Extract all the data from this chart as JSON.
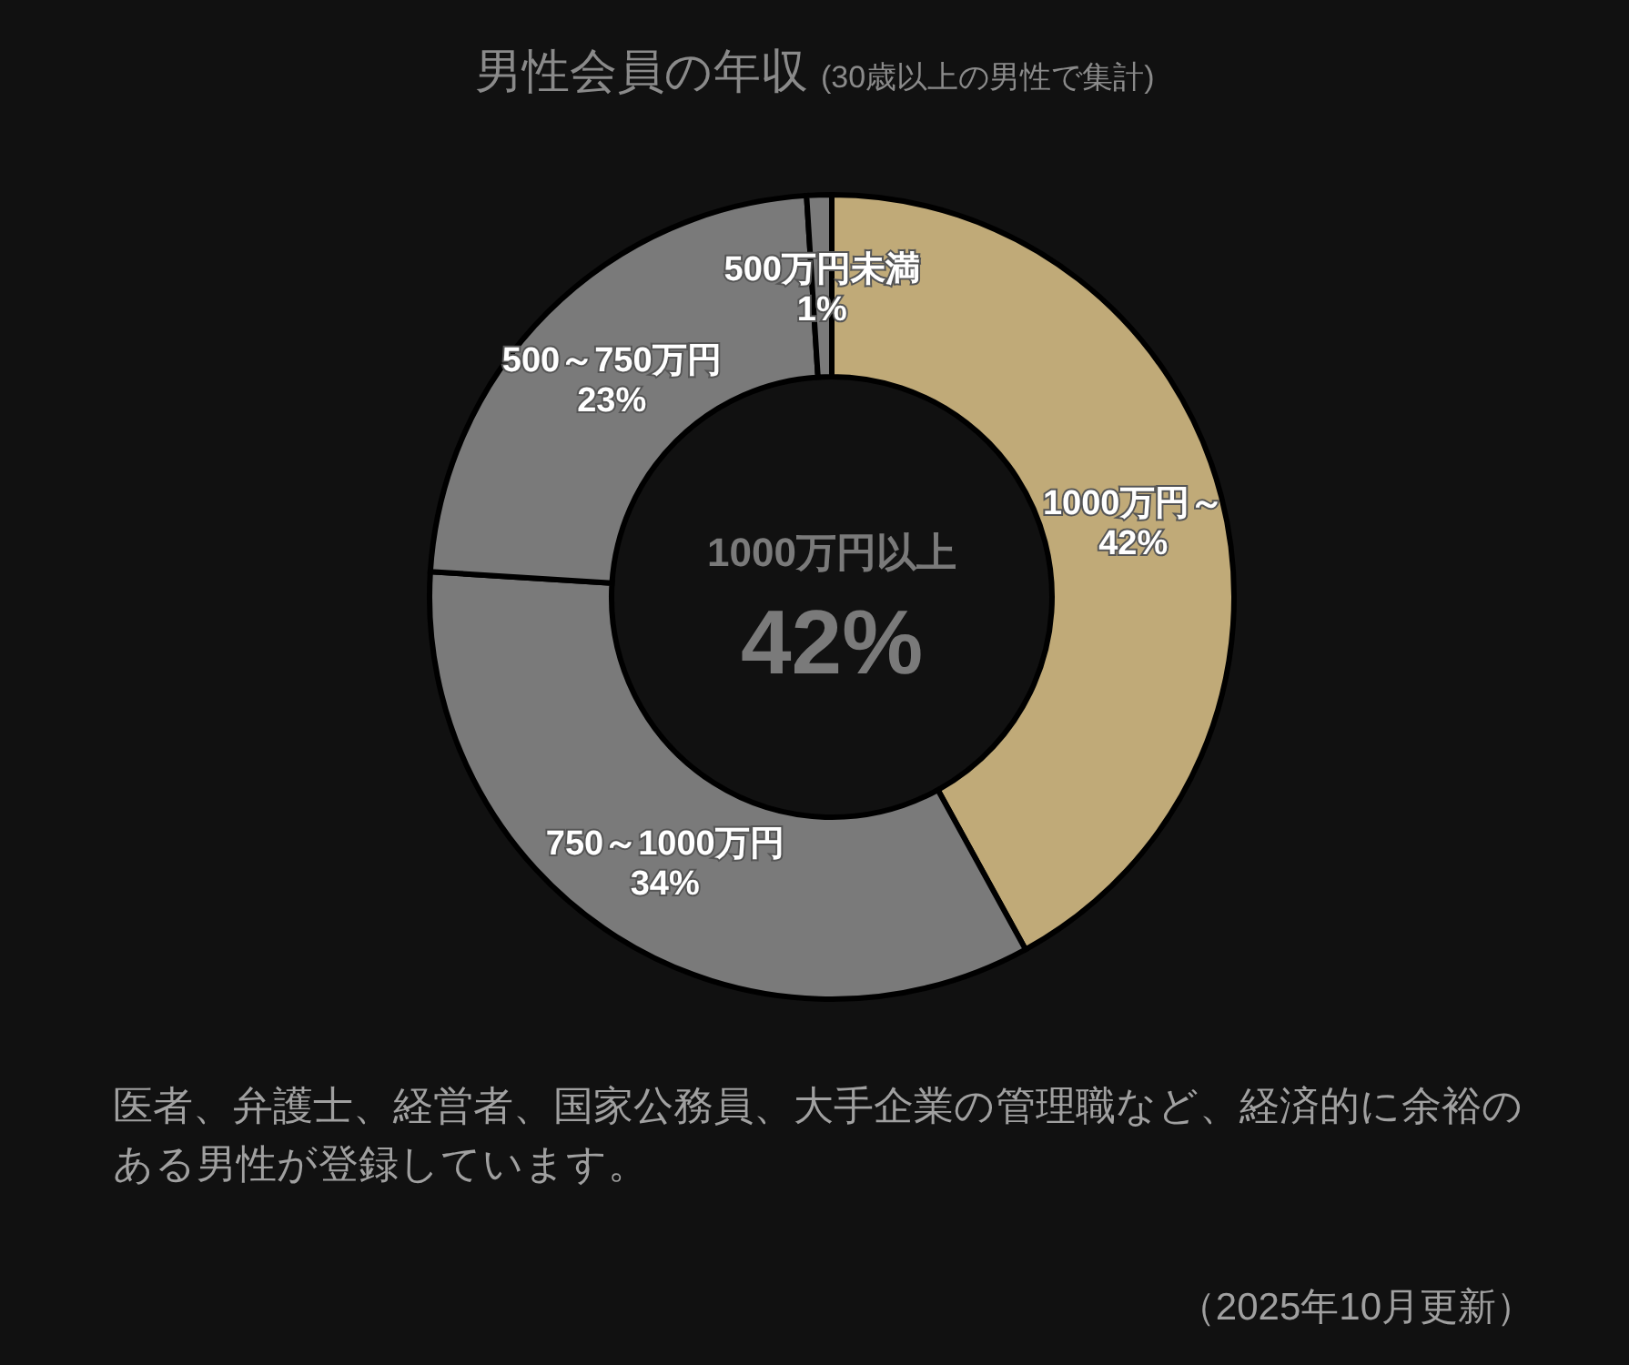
{
  "chart_data": {
    "type": "donut",
    "title": "男性会員の年収",
    "subtitle": "(30歳以上の男性で集計)",
    "categories": [
      "1000万円～",
      "750～1000万円",
      "500～750万円",
      "500万円未満"
    ],
    "values": [
      42,
      34,
      23,
      1
    ],
    "colors": [
      "#c0aa78",
      "#7a7a7a",
      "#7a7a7a",
      "#7a7a7a"
    ],
    "value_labels": [
      "42%",
      "34%",
      "23%",
      "1%"
    ],
    "annotations": [
      "1000万円以上",
      "42%",
      "医者、弁護士、経営者、国家公務員、大手企業の管理職など、経済的に余裕のある男性が登録しています。",
      "（2025年10月更新）"
    ]
  }
}
